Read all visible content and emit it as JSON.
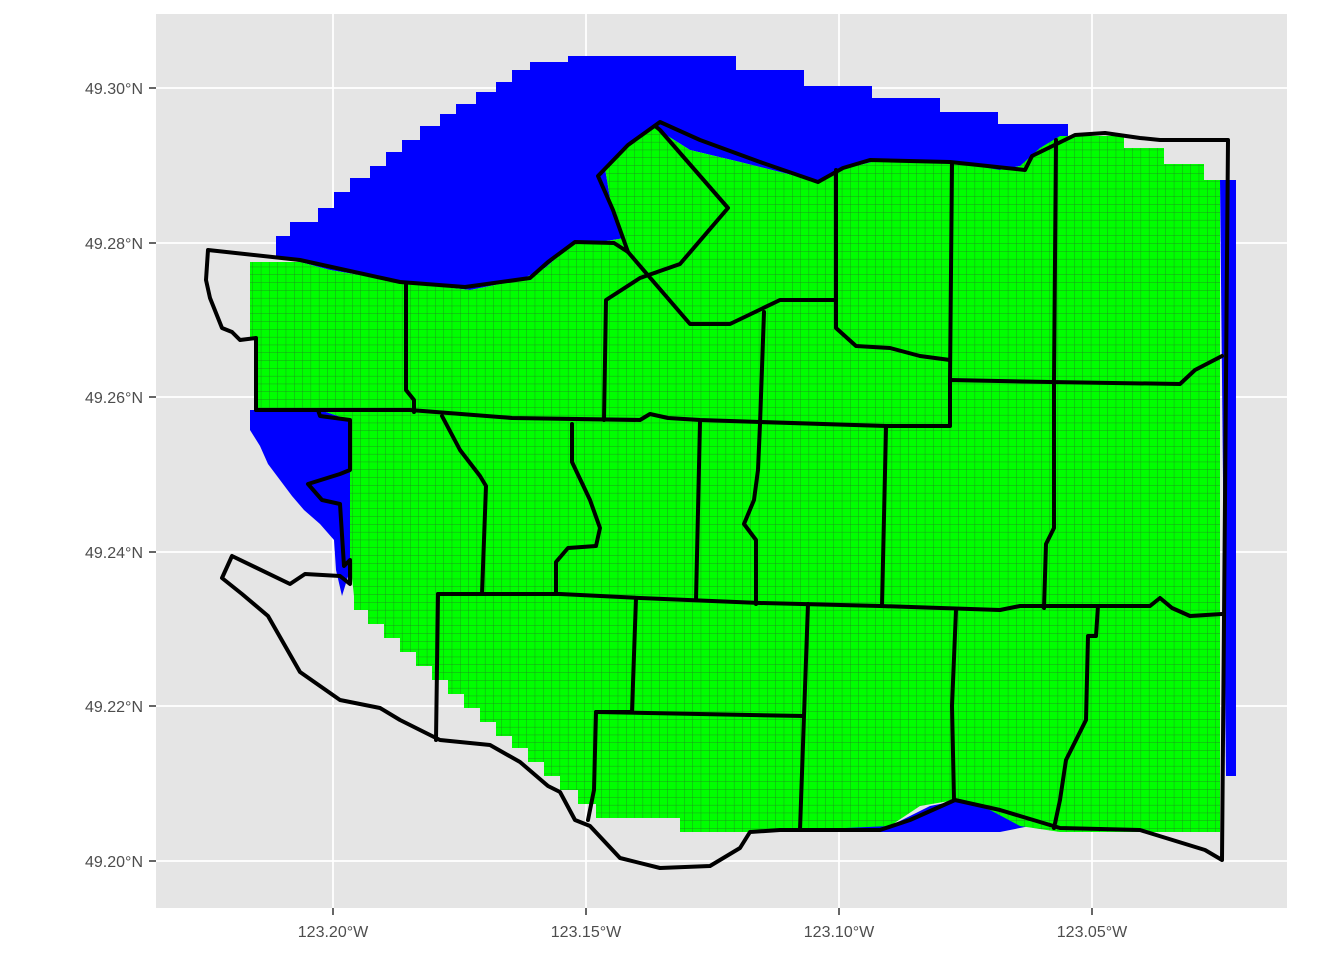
{
  "chart_data": {
    "type": "map",
    "title": "",
    "xlabel": "",
    "ylabel": "",
    "x_ticks": [
      "123.20°W",
      "123.15°W",
      "123.10°W",
      "123.05°W"
    ],
    "x_tick_values": [
      -123.2,
      -123.15,
      -123.1,
      -123.05
    ],
    "y_ticks": [
      "49.30°N",
      "49.28°N",
      "49.26°N",
      "49.24°N",
      "49.22°N",
      "49.20°N"
    ],
    "y_tick_values": [
      49.3,
      49.28,
      49.26,
      49.24,
      49.22,
      49.2
    ],
    "xlim": [
      -123.235,
      -123.015
    ],
    "ylim": [
      49.194,
      49.309
    ],
    "grid": true,
    "layers": [
      {
        "name": "water",
        "color": "#0000ff"
      },
      {
        "name": "land",
        "color": "#00ff00"
      }
    ],
    "colors": {
      "panel_background": "#e5e5e5",
      "grid": "#ffffff",
      "boundary": "#000000",
      "cell_border": "#333333"
    }
  }
}
